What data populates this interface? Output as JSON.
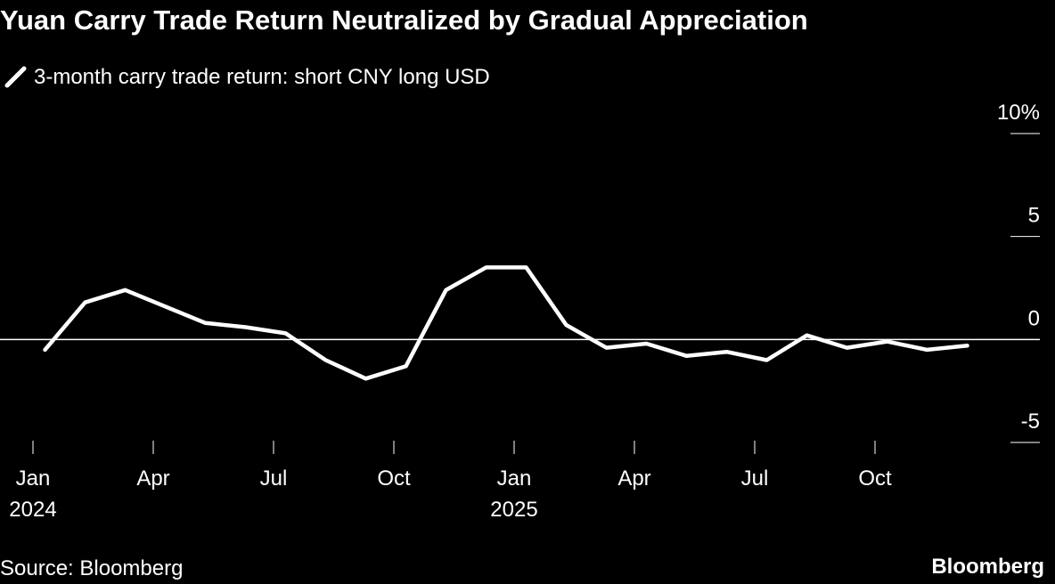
{
  "chart_data": {
    "type": "line",
    "title": "Yuan Carry Trade Return Neutralized by Gradual Appreciation",
    "x": [
      "2024-01",
      "2024-02",
      "2024-03",
      "2024-04",
      "2024-05",
      "2024-06",
      "2024-07",
      "2024-08",
      "2024-09",
      "2024-10",
      "2024-11",
      "2024-12",
      "2025-01",
      "2025-02",
      "2025-03",
      "2025-04",
      "2025-05",
      "2025-06",
      "2025-07",
      "2025-08",
      "2025-09",
      "2025-10",
      "2025-11",
      "2025-12"
    ],
    "series": [
      {
        "name": "3-month carry trade return: short CNY long USD",
        "color": "#ffffff",
        "values": [
          -0.5,
          1.8,
          2.4,
          1.6,
          0.8,
          0.6,
          0.3,
          -1.0,
          -1.9,
          -1.3,
          2.4,
          3.5,
          3.5,
          0.7,
          -0.4,
          -0.2,
          -0.8,
          -0.6,
          -1.0,
          0.2,
          -0.4,
          -0.1,
          -0.5,
          -0.3
        ]
      }
    ],
    "xticks": [
      {
        "value": "2024-01",
        "label": "Jan",
        "year": "2024"
      },
      {
        "value": "2024-04",
        "label": "Apr"
      },
      {
        "value": "2024-07",
        "label": "Jul"
      },
      {
        "value": "2024-10",
        "label": "Oct"
      },
      {
        "value": "2025-01",
        "label": "Jan",
        "year": "2025"
      },
      {
        "value": "2025-04",
        "label": "Apr"
      },
      {
        "value": "2025-07",
        "label": "Jul"
      },
      {
        "value": "2025-10",
        "label": "Oct"
      }
    ],
    "ylim": [
      -5,
      10
    ],
    "yticks": [
      {
        "value": 10,
        "label": "10%"
      },
      5,
      0,
      -5
    ],
    "source": "Source: Bloomberg",
    "logo": "Bloomberg"
  }
}
